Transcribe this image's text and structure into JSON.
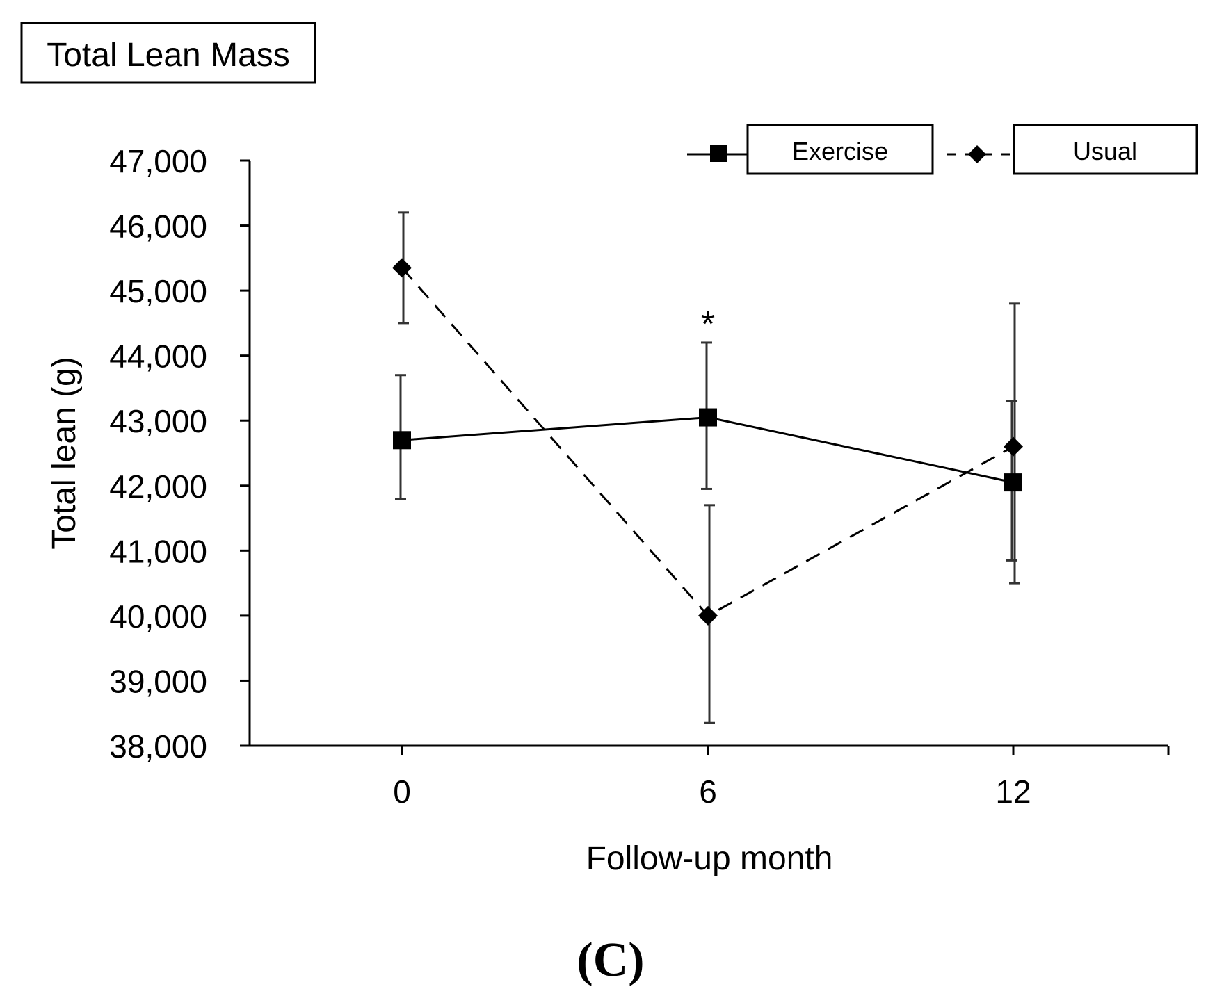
{
  "chart_data": {
    "type": "line",
    "title": "Total Lean Mass",
    "panel_label": "(C)",
    "xlabel": "Follow-up month",
    "ylabel": "Total lean (g)",
    "ylim": [
      38000,
      47000
    ],
    "yticks": [
      38000,
      39000,
      40000,
      41000,
      42000,
      43000,
      44000,
      45000,
      46000,
      47000
    ],
    "ytick_labels": [
      "38,000",
      "39,000",
      "40,000",
      "41,000",
      "42,000",
      "43,000",
      "44,000",
      "45,000",
      "46,000",
      "47,000"
    ],
    "categories": [
      "0",
      "6",
      "12"
    ],
    "grid": false,
    "legend_position": "top-right",
    "series": [
      {
        "name": "Exercise",
        "marker": "square",
        "line_style": "solid",
        "values": [
          42700,
          43050,
          42050
        ],
        "error_low": [
          41800,
          41950,
          40850
        ],
        "error_high": [
          43700,
          44200,
          43300
        ]
      },
      {
        "name": "Usual",
        "marker": "diamond",
        "line_style": "dashed",
        "values": [
          45350,
          40000,
          42600
        ],
        "error_low": [
          44500,
          38350,
          40500
        ],
        "error_high": [
          46200,
          41700,
          44800
        ]
      }
    ],
    "annotations": [
      {
        "text": "*",
        "category": "6",
        "y": 44550
      }
    ],
    "colors": {
      "line": "#000000",
      "error_bar": "#333333",
      "axis": "#000000"
    }
  }
}
